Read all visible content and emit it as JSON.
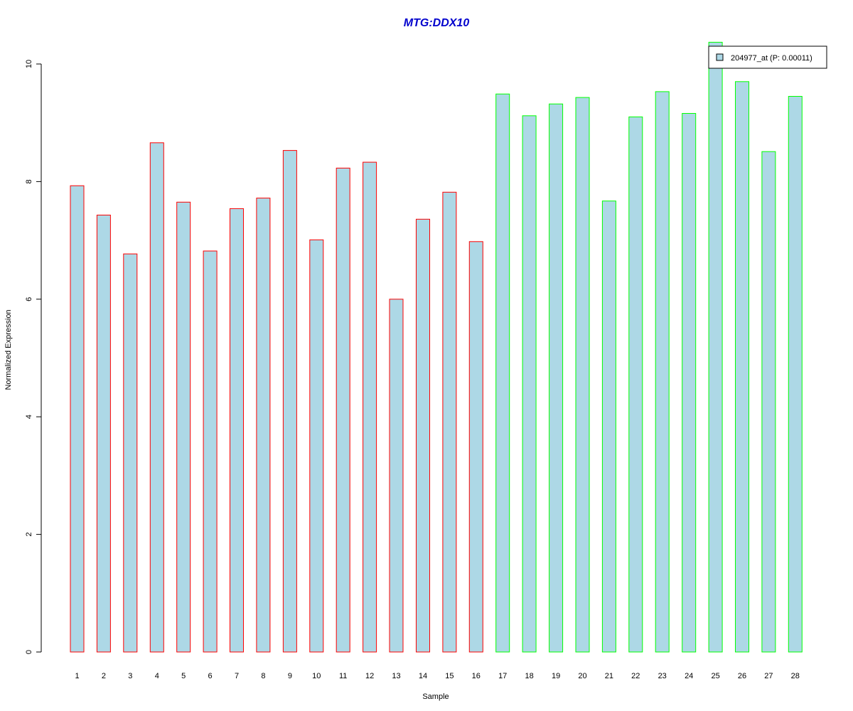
{
  "chart_data": {
    "type": "bar",
    "title": "MTG:DDX10",
    "xlabel": "Sample",
    "ylabel": "Normalized Expression",
    "ylim": [
      0,
      10
    ],
    "yticks": [
      "0",
      "2",
      "4",
      "6",
      "8",
      "10"
    ],
    "categories": [
      "1",
      "2",
      "3",
      "4",
      "5",
      "6",
      "7",
      "8",
      "9",
      "10",
      "11",
      "12",
      "13",
      "14",
      "15",
      "16",
      "17",
      "18",
      "19",
      "20",
      "21",
      "22",
      "23",
      "24",
      "25",
      "26",
      "27",
      "28"
    ],
    "series": [
      {
        "name": "204977_at (P: 0.00011)",
        "values": [
          7.93,
          7.43,
          6.77,
          8.66,
          7.65,
          6.82,
          7.54,
          7.72,
          8.53,
          7.01,
          8.23,
          8.33,
          6.0,
          7.36,
          7.82,
          6.98,
          9.49,
          9.12,
          9.32,
          9.43,
          7.67,
          9.1,
          9.53,
          9.16,
          10.37,
          9.7,
          8.51,
          9.45
        ]
      }
    ],
    "groups": [
      {
        "samples": [
          1,
          16
        ],
        "border_color": "#ff0000"
      },
      {
        "samples": [
          17,
          28
        ],
        "border_color": "#00ff00"
      }
    ],
    "fill_color": "#add8e6",
    "title_color": "#0000cd",
    "legend_position": "top-right",
    "grid": false
  }
}
